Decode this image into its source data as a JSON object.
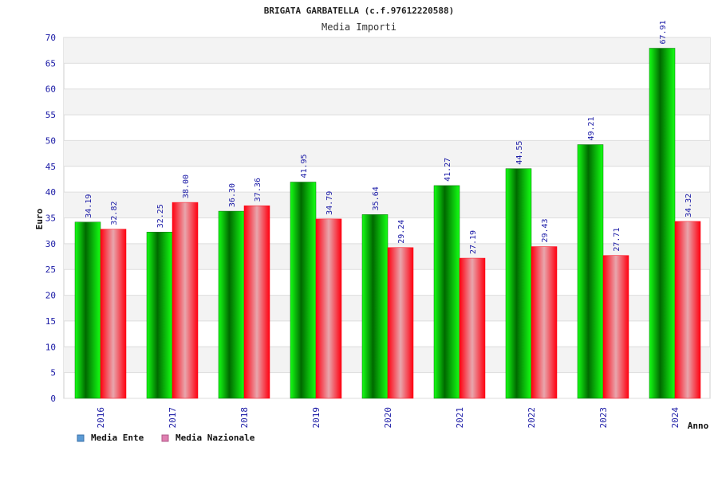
{
  "chart_data": {
    "type": "bar",
    "title": "BRIGATA GARBATELLA (c.f.97612220588)",
    "subtitle": "Media Importi",
    "xlabel": "Anno",
    "ylabel": "Euro",
    "categories": [
      "2016",
      "2017",
      "2018",
      "2019",
      "2020",
      "2021",
      "2022",
      "2023",
      "2024"
    ],
    "series": [
      {
        "name": "Media Ente",
        "values": [
          34.19,
          32.25,
          36.3,
          41.95,
          35.64,
          41.27,
          44.55,
          49.21,
          67.91
        ],
        "labels": [
          "34.19",
          "32.25",
          "36.30",
          "41.95",
          "35.64",
          "41.27",
          "44.55",
          "49.21",
          "67.91"
        ]
      },
      {
        "name": "Media Nazionale",
        "values": [
          32.82,
          38.0,
          37.36,
          34.79,
          29.24,
          27.19,
          29.43,
          27.71,
          34.32
        ],
        "labels": [
          "32.82",
          "38.00",
          "37.36",
          "34.79",
          "29.24",
          "27.19",
          "29.43",
          "27.71",
          "34.32"
        ]
      }
    ],
    "ylim": [
      0,
      70
    ],
    "yticks": [
      0,
      5,
      10,
      15,
      20,
      25,
      30,
      35,
      40,
      45,
      50,
      55,
      60,
      65,
      70
    ],
    "grid": true,
    "legend_position": "bottom-left"
  },
  "colors": {
    "ente_dark": "#006a00",
    "ente_light": "#14ff14",
    "nazionale_dark": "#ff0010",
    "nazionale_light": "#e8a6ad",
    "legend_ente": "#5b9bd5",
    "legend_nazionale": "#e07fb1",
    "band": "#f3f3f3",
    "text_blue": "#1a1aa6"
  }
}
